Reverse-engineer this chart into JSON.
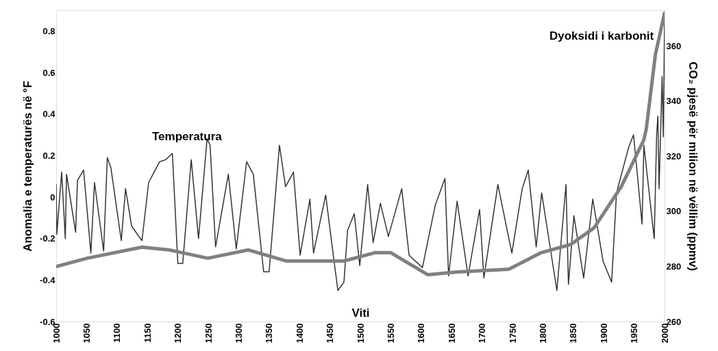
{
  "chart_data": {
    "type": "line",
    "xlabel": "Viti",
    "ylabel": "Anomalia e temperaturës në °F",
    "y2label": "CO₂ pjesë për milion në vëllim (ppmv)",
    "xlim": [
      1000,
      2000
    ],
    "xticks": [
      1000,
      1050,
      1100,
      1150,
      1200,
      1250,
      1300,
      1350,
      1400,
      1450,
      1500,
      1550,
      1600,
      1650,
      1700,
      1750,
      1800,
      1850,
      1900,
      1950,
      2000
    ],
    "ylim": [
      -0.6,
      0.9
    ],
    "yticks": [
      -0.6,
      -0.4,
      -0.2,
      0,
      0.2,
      0.4,
      0.6,
      0.8
    ],
    "y2lim": [
      260,
      373
    ],
    "y2ticks": [
      260,
      280,
      300,
      320,
      340,
      360
    ],
    "grid": false,
    "series": [
      {
        "name": "Temperatura",
        "axis": "y",
        "color": "#333333",
        "x": [
          1000,
          1001,
          1009,
          1015,
          1017,
          1032,
          1035,
          1045,
          1057,
          1063,
          1078,
          1084,
          1090,
          1107,
          1114,
          1124,
          1141,
          1152,
          1170,
          1180,
          1191,
          1200,
          1208,
          1222,
          1234,
          1248,
          1253,
          1262,
          1283,
          1296,
          1313,
          1324,
          1341,
          1350,
          1367,
          1377,
          1390,
          1401,
          1417,
          1423,
          1443,
          1452,
          1463,
          1473,
          1479,
          1490,
          1499,
          1512,
          1521,
          1533,
          1546,
          1568,
          1580,
          1602,
          1623,
          1639,
          1645,
          1659,
          1677,
          1696,
          1703,
          1726,
          1749,
          1766,
          1776,
          1789,
          1798,
          1823,
          1838,
          1842,
          1851,
          1867,
          1882,
          1899,
          1913,
          1921,
          1941,
          1949,
          1963,
          1966,
          1983,
          1987,
          1989,
          1991,
          1994,
          1996,
          1998,
          2000
        ],
        "values": [
          0.06,
          -0.18,
          0.12,
          -0.2,
          0.11,
          -0.17,
          0.08,
          0.13,
          -0.27,
          0.07,
          -0.26,
          0.19,
          0.14,
          -0.21,
          0.04,
          -0.14,
          -0.21,
          0.07,
          0.17,
          0.18,
          0.21,
          -0.32,
          -0.32,
          0.18,
          -0.2,
          0.28,
          0.25,
          -0.24,
          0.11,
          -0.25,
          0.17,
          0.11,
          -0.36,
          -0.36,
          0.25,
          0.05,
          0.12,
          -0.28,
          -0.01,
          -0.27,
          0.01,
          -0.2,
          -0.45,
          -0.41,
          -0.16,
          -0.08,
          -0.33,
          0.06,
          -0.22,
          -0.03,
          -0.19,
          0.04,
          -0.28,
          -0.34,
          -0.04,
          0.09,
          -0.38,
          -0.02,
          -0.38,
          -0.06,
          -0.39,
          0.06,
          -0.27,
          0.04,
          0.13,
          -0.24,
          0.02,
          -0.45,
          0.06,
          -0.42,
          -0.09,
          -0.39,
          -0.01,
          -0.31,
          -0.41,
          0.02,
          0.24,
          0.3,
          -0.13,
          0.25,
          -0.2,
          0.3,
          0.39,
          0.04,
          0.36,
          0.58,
          0.29,
          0.85
        ]
      },
      {
        "name": "Dyoksidi i karbonit",
        "axis": "y2",
        "color": "#808080",
        "x": [
          1000,
          1051,
          1141,
          1186,
          1249,
          1316,
          1378,
          1459,
          1473,
          1524,
          1550,
          1611,
          1659,
          1744,
          1797,
          1846,
          1884,
          1929,
          1966,
          1970,
          1985,
          2000
        ],
        "values": [
          280,
          283,
          287,
          286,
          283,
          286,
          282,
          282,
          282,
          285,
          285,
          277,
          278,
          279,
          285,
          288,
          294,
          309,
          326,
          330,
          357,
          372
        ]
      }
    ]
  }
}
